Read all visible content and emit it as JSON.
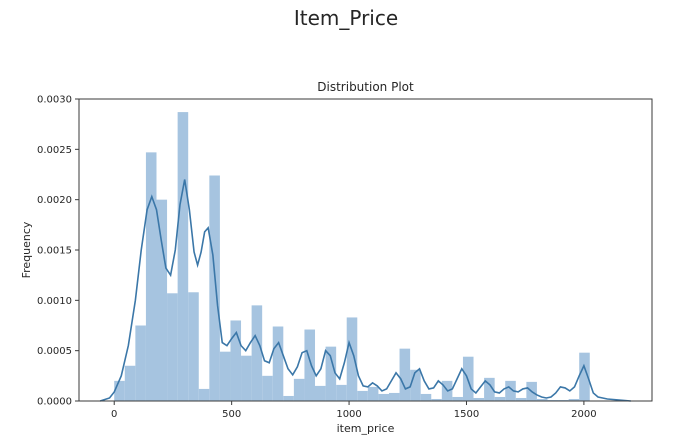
{
  "figure": {
    "suptitle": "Item_Price"
  },
  "chart_data": {
    "type": "bar",
    "title": "Distribution Plot",
    "xlabel": "item_price",
    "ylabel": "Frequency",
    "xlim": [
      -150,
      2290
    ],
    "ylim": [
      0,
      0.003
    ],
    "xticks": [
      0,
      500,
      1000,
      1500,
      2000
    ],
    "xtick_labels": [
      "0",
      "500",
      "1000",
      "1500",
      "2000"
    ],
    "yticks": [
      0,
      0.0005,
      0.001,
      0.0015,
      0.002,
      0.0025,
      0.003
    ],
    "ytick_labels": [
      "0.0000",
      "0.0005",
      "0.0010",
      "0.0015",
      "0.0020",
      "0.0025",
      "0.0030"
    ],
    "grid": false,
    "colors": {
      "bars": "#a6c4e0",
      "kde": "#3b77a8",
      "axes": "#3a3a3a"
    },
    "histogram": {
      "bin_edges": [
        0,
        45,
        90,
        135,
        180,
        225,
        270,
        315,
        360,
        405,
        450,
        495,
        540,
        585,
        630,
        675,
        720,
        765,
        810,
        855,
        900,
        945,
        990,
        1035,
        1080,
        1125,
        1170,
        1215,
        1260,
        1305,
        1350,
        1395,
        1440,
        1485,
        1530,
        1575,
        1620,
        1665,
        1710,
        1755,
        1800,
        1845,
        1890,
        1935,
        1980,
        2025
      ],
      "values": [
        0.0002,
        0.00035,
        0.00075,
        0.00247,
        0.002,
        0.00107,
        0.00287,
        0.00108,
        0.00012,
        0.00224,
        0.00049,
        0.0008,
        0.00045,
        0.00095,
        0.00025,
        0.00074,
        5e-05,
        0.00022,
        0.00071,
        0.00015,
        0.00054,
        0.00016,
        0.00083,
        0.0001,
        0.00014,
        7e-05,
        8e-05,
        0.00052,
        0.00031,
        7e-05,
        2e-05,
        0.0002,
        4e-05,
        0.00044,
        3e-05,
        0.00023,
        4e-05,
        0.0002,
        3e-05,
        0.00019,
        2e-05,
        1e-05,
        1e-05,
        2e-05,
        0.00048
      ]
    },
    "kde": {
      "x": [
        -60,
        -20,
        0,
        30,
        60,
        90,
        115,
        140,
        160,
        180,
        200,
        220,
        240,
        260,
        280,
        300,
        320,
        340,
        355,
        370,
        385,
        400,
        420,
        440,
        460,
        480,
        500,
        520,
        540,
        560,
        580,
        600,
        620,
        640,
        660,
        680,
        700,
        720,
        740,
        760,
        780,
        800,
        820,
        840,
        860,
        880,
        900,
        920,
        940,
        960,
        980,
        1000,
        1020,
        1040,
        1060,
        1080,
        1100,
        1120,
        1140,
        1160,
        1180,
        1200,
        1220,
        1240,
        1260,
        1280,
        1300,
        1320,
        1340,
        1360,
        1380,
        1400,
        1420,
        1440,
        1460,
        1480,
        1500,
        1520,
        1540,
        1560,
        1580,
        1600,
        1620,
        1640,
        1660,
        1680,
        1700,
        1720,
        1740,
        1760,
        1780,
        1800,
        1820,
        1840,
        1860,
        1880,
        1900,
        1920,
        1940,
        1960,
        1980,
        2000,
        2020,
        2040,
        2060,
        2080,
        2100,
        2150,
        2200
      ],
      "y": [
        0.0,
        3e-05,
        9e-05,
        0.00025,
        0.00055,
        0.001,
        0.0015,
        0.0019,
        0.00203,
        0.0019,
        0.0016,
        0.00132,
        0.00125,
        0.0015,
        0.00195,
        0.0022,
        0.0019,
        0.00148,
        0.00135,
        0.00148,
        0.00168,
        0.00172,
        0.00145,
        0.00095,
        0.00058,
        0.00055,
        0.00062,
        0.00068,
        0.00055,
        0.0005,
        0.00058,
        0.00065,
        0.00055,
        0.0004,
        0.00038,
        0.00052,
        0.00058,
        0.00045,
        0.00032,
        0.00026,
        0.00034,
        0.00048,
        0.0005,
        0.00035,
        0.00025,
        0.00032,
        0.0005,
        0.00045,
        0.00028,
        0.00022,
        0.00038,
        0.00058,
        0.00045,
        0.00025,
        0.00015,
        0.00014,
        0.00018,
        0.00015,
        0.0001,
        0.00012,
        0.0002,
        0.00028,
        0.00022,
        0.00012,
        0.00014,
        0.00028,
        0.00032,
        0.0002,
        0.00012,
        0.00013,
        0.0002,
        0.00016,
        0.0001,
        0.00012,
        0.00022,
        0.00032,
        0.00025,
        0.00012,
        8e-05,
        0.00014,
        0.0002,
        0.00016,
        9e-05,
        8e-05,
        0.00012,
        0.00014,
        0.0001,
        9e-05,
        0.00012,
        0.00013,
        9e-05,
        6e-05,
        4e-05,
        3e-05,
        4e-05,
        8e-05,
        0.00014,
        0.00013,
        0.0001,
        0.00014,
        0.00025,
        0.00035,
        0.00022,
        8e-05,
        4e-05,
        3e-05,
        2e-05,
        1e-05,
        0.0
      ]
    }
  }
}
